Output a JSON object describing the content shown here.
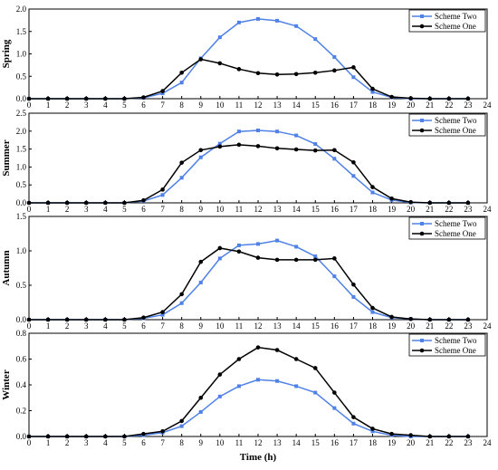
{
  "chart_data": [
    {
      "type": "line",
      "ylabel": "Spring",
      "ylim": [
        0.0,
        2.0
      ],
      "yticks": [
        "0.0",
        "0.5",
        "1.0",
        "1.5",
        "2.0"
      ],
      "x": [
        0,
        1,
        2,
        3,
        4,
        5,
        6,
        7,
        8,
        9,
        10,
        11,
        12,
        13,
        14,
        15,
        16,
        17,
        18,
        19,
        20,
        21,
        22,
        23
      ],
      "xticks": [
        "0",
        "1",
        "2",
        "3",
        "4",
        "5",
        "6",
        "7",
        "8",
        "9",
        "10",
        "11",
        "12",
        "13",
        "14",
        "15",
        "16",
        "17",
        "18",
        "19",
        "20",
        "21",
        "22",
        "23",
        "24"
      ],
      "legend": "top-right",
      "series": [
        {
          "name": "Scheme Two",
          "color": "#4f81e6",
          "values": [
            0,
            0,
            0,
            0,
            0,
            0,
            0.02,
            0.12,
            0.36,
            0.9,
            1.37,
            1.7,
            1.78,
            1.74,
            1.62,
            1.33,
            0.93,
            0.48,
            0.15,
            0.03,
            0,
            0,
            0,
            0
          ]
        },
        {
          "name": "Scheme One",
          "color": "#000000",
          "values": [
            0,
            0,
            0,
            0,
            0,
            0,
            0.03,
            0.17,
            0.58,
            0.88,
            0.79,
            0.66,
            0.57,
            0.54,
            0.55,
            0.58,
            0.63,
            0.7,
            0.22,
            0.04,
            0.01,
            0,
            0,
            0
          ]
        }
      ]
    },
    {
      "type": "line",
      "ylabel": "Summer",
      "ylim": [
        0.0,
        2.5
      ],
      "yticks": [
        "0.0",
        "0.5",
        "1.0",
        "1.5",
        "2.0",
        "2.5"
      ],
      "x": [
        0,
        1,
        2,
        3,
        4,
        5,
        6,
        7,
        8,
        9,
        10,
        11,
        12,
        13,
        14,
        15,
        16,
        17,
        18,
        19,
        20,
        21,
        22,
        23
      ],
      "xticks": [
        "0",
        "1",
        "2",
        "3",
        "4",
        "5",
        "6",
        "7",
        "8",
        "9",
        "10",
        "11",
        "12",
        "13",
        "14",
        "15",
        "16",
        "17",
        "18",
        "19",
        "20",
        "21",
        "22",
        "23",
        "24"
      ],
      "legend": "top-right",
      "series": [
        {
          "name": "Scheme Two",
          "color": "#4f81e6",
          "values": [
            0,
            0,
            0,
            0,
            0,
            0,
            0.05,
            0.22,
            0.7,
            1.27,
            1.65,
            1.99,
            2.02,
            1.99,
            1.88,
            1.64,
            1.23,
            0.75,
            0.29,
            0.08,
            0.01,
            0,
            0,
            0
          ]
        },
        {
          "name": "Scheme One",
          "color": "#000000",
          "values": [
            0,
            0,
            0,
            0,
            0,
            0,
            0.07,
            0.37,
            1.12,
            1.47,
            1.57,
            1.62,
            1.58,
            1.52,
            1.49,
            1.46,
            1.47,
            1.13,
            0.44,
            0.12,
            0.02,
            0,
            0,
            0
          ]
        }
      ]
    },
    {
      "type": "line",
      "ylabel": "Autumn",
      "ylim": [
        0.0,
        1.5
      ],
      "yticks": [
        "0.0",
        "0.5",
        "1.0",
        "1.5"
      ],
      "x": [
        0,
        1,
        2,
        3,
        4,
        5,
        6,
        7,
        8,
        9,
        10,
        11,
        12,
        13,
        14,
        15,
        16,
        17,
        18,
        19,
        20,
        21,
        22,
        23
      ],
      "xticks": [
        "0",
        "1",
        "2",
        "3",
        "4",
        "5",
        "6",
        "7",
        "8",
        "9",
        "10",
        "11",
        "12",
        "13",
        "14",
        "15",
        "16",
        "17",
        "18",
        "19",
        "20",
        "21",
        "22",
        "23",
        "24"
      ],
      "legend": "top-right",
      "series": [
        {
          "name": "Scheme Two",
          "color": "#4f81e6",
          "values": [
            0,
            0,
            0,
            0,
            0,
            0,
            0.02,
            0.07,
            0.24,
            0.54,
            0.89,
            1.08,
            1.1,
            1.15,
            1.06,
            0.92,
            0.63,
            0.33,
            0.11,
            0.03,
            0.01,
            0,
            0,
            0
          ]
        },
        {
          "name": "Scheme One",
          "color": "#000000",
          "values": [
            0,
            0,
            0,
            0,
            0,
            0,
            0.03,
            0.11,
            0.37,
            0.84,
            1.04,
            0.99,
            0.9,
            0.87,
            0.87,
            0.87,
            0.89,
            0.51,
            0.17,
            0.04,
            0.01,
            0,
            0,
            0
          ]
        }
      ]
    },
    {
      "type": "line",
      "ylabel": "Winter",
      "ylim": [
        0.0,
        0.8
      ],
      "yticks": [
        "0.0",
        "0.2",
        "0.4",
        "0.6",
        "0.8"
      ],
      "x": [
        0,
        1,
        2,
        3,
        4,
        5,
        6,
        7,
        8,
        9,
        10,
        11,
        12,
        13,
        14,
        15,
        16,
        17,
        18,
        19,
        20,
        21,
        22,
        23
      ],
      "xticks": [
        "0",
        "1",
        "2",
        "3",
        "4",
        "5",
        "6",
        "7",
        "8",
        "9",
        "10",
        "11",
        "12",
        "13",
        "14",
        "15",
        "16",
        "17",
        "18",
        "19",
        "20",
        "21",
        "22",
        "23",
        "24"
      ],
      "xlabel": "Time (h)",
      "legend": "top-right",
      "series": [
        {
          "name": "Scheme Two",
          "color": "#4f81e6",
          "values": [
            0,
            0,
            0,
            0,
            0,
            0,
            0.01,
            0.03,
            0.08,
            0.19,
            0.31,
            0.39,
            0.44,
            0.43,
            0.39,
            0.34,
            0.22,
            0.1,
            0.04,
            0.01,
            0,
            0,
            0,
            0
          ]
        },
        {
          "name": "Scheme One",
          "color": "#000000",
          "values": [
            0,
            0,
            0,
            0,
            0,
            0,
            0.02,
            0.04,
            0.12,
            0.3,
            0.48,
            0.6,
            0.69,
            0.67,
            0.6,
            0.53,
            0.34,
            0.15,
            0.06,
            0.02,
            0.01,
            0,
            0,
            0
          ]
        }
      ]
    }
  ]
}
